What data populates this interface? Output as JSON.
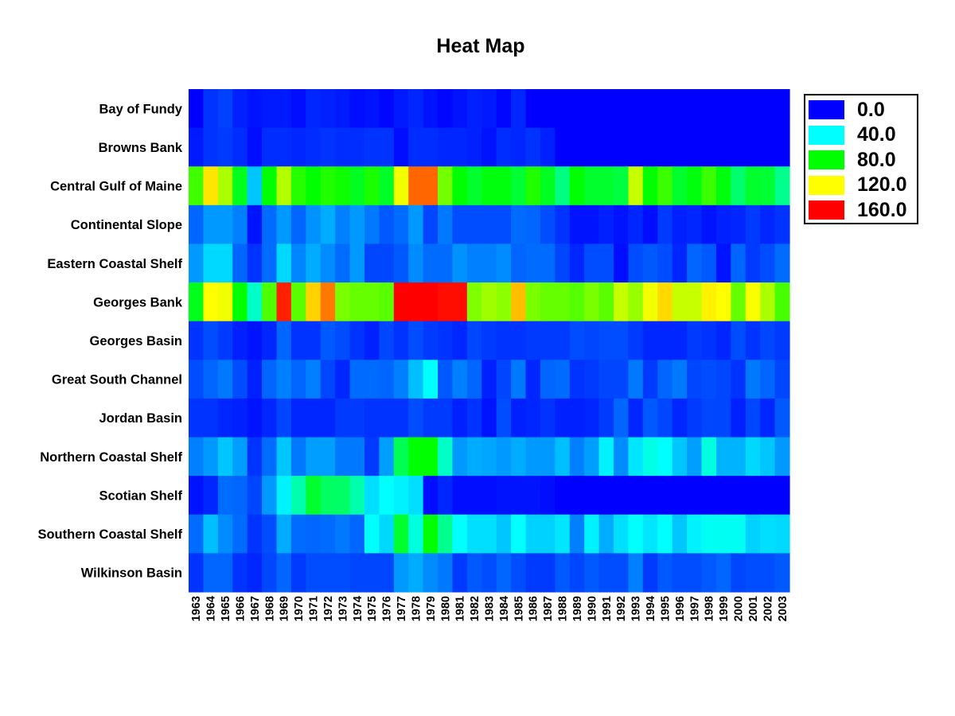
{
  "chart_data": {
    "type": "heatmap",
    "title": "Heat Map",
    "xlabel": "",
    "ylabel": "",
    "rows": [
      "Bay of Fundy",
      "Browns Bank",
      "Central Gulf of Maine",
      "Continental Slope",
      "Eastern Coastal Shelf",
      "Georges Bank",
      "Georges Basin",
      "Great South Channel",
      "Jordan Basin",
      "Northern Coastal Shelf",
      "Scotian Shelf",
      "Southern Coastal Shelf",
      "Wilkinson Basin"
    ],
    "columns": [
      "1963",
      "1964",
      "1965",
      "1966",
      "1967",
      "1968",
      "1969",
      "1970",
      "1971",
      "1972",
      "1973",
      "1974",
      "1975",
      "1976",
      "1977",
      "1978",
      "1979",
      "1980",
      "1981",
      "1982",
      "1983",
      "1984",
      "1985",
      "1986",
      "1987",
      "1988",
      "1989",
      "1990",
      "1991",
      "1992",
      "1993",
      "1994",
      "1995",
      "1996",
      "1997",
      "1998",
      "1999",
      "2000",
      "2001",
      "2002",
      "2003"
    ],
    "values": [
      [
        0,
        8,
        10,
        5,
        3,
        4,
        4,
        2,
        6,
        5,
        4,
        2,
        3,
        1,
        4,
        6,
        3,
        1,
        3,
        5,
        4,
        1,
        6,
        0,
        0,
        0,
        0,
        0,
        0,
        0,
        0,
        0,
        0,
        0,
        0,
        0,
        0,
        0,
        0,
        0,
        0
      ],
      [
        4,
        8,
        9,
        7,
        2,
        7,
        7,
        6,
        7,
        8,
        7,
        7,
        8,
        8,
        2,
        7,
        7,
        6,
        6,
        5,
        3,
        7,
        6,
        8,
        5,
        0,
        0,
        0,
        0,
        0,
        0,
        0,
        0,
        0,
        0,
        0,
        0,
        0,
        0,
        0,
        0
      ],
      [
        90,
        124,
        107,
        76,
        31,
        80,
        108,
        86,
        80,
        85,
        82,
        75,
        84,
        74,
        118,
        144,
        144,
        98,
        80,
        73,
        78,
        78,
        72,
        85,
        75,
        60,
        80,
        73,
        73,
        70,
        111,
        80,
        89,
        73,
        78,
        89,
        78,
        63,
        73,
        72,
        58
      ],
      [
        16,
        24,
        24,
        20,
        3,
        17,
        24,
        16,
        23,
        27,
        20,
        24,
        19,
        14,
        17,
        24,
        11,
        19,
        12,
        12,
        12,
        12,
        17,
        16,
        12,
        8,
        3,
        3,
        5,
        3,
        6,
        2,
        9,
        5,
        6,
        3,
        5,
        6,
        9,
        6,
        8
      ],
      [
        24,
        34,
        34,
        16,
        8,
        17,
        34,
        21,
        27,
        22,
        17,
        24,
        11,
        11,
        14,
        22,
        17,
        17,
        23,
        20,
        20,
        22,
        16,
        17,
        17,
        11,
        6,
        12,
        12,
        2,
        12,
        14,
        12,
        6,
        16,
        14,
        3,
        16,
        9,
        12,
        17
      ],
      [
        76,
        120,
        118,
        80,
        49,
        92,
        155,
        94,
        127,
        141,
        99,
        96,
        96,
        94,
        160,
        160,
        160,
        158,
        158,
        100,
        105,
        102,
        130,
        99,
        96,
        96,
        93,
        99,
        94,
        111,
        104,
        118,
        126,
        111,
        111,
        122,
        120,
        96,
        119,
        107,
        91
      ],
      [
        8,
        12,
        9,
        5,
        3,
        6,
        16,
        8,
        8,
        14,
        12,
        8,
        5,
        11,
        8,
        12,
        9,
        8,
        6,
        11,
        9,
        8,
        8,
        9,
        9,
        9,
        12,
        11,
        12,
        12,
        9,
        6,
        6,
        6,
        9,
        8,
        6,
        12,
        8,
        11,
        9
      ],
      [
        12,
        16,
        19,
        12,
        5,
        16,
        20,
        16,
        20,
        11,
        6,
        17,
        17,
        16,
        20,
        30,
        40,
        14,
        20,
        16,
        5,
        11,
        19,
        6,
        16,
        17,
        8,
        9,
        11,
        11,
        19,
        9,
        16,
        19,
        11,
        12,
        11,
        8,
        19,
        16,
        11
      ],
      [
        8,
        8,
        6,
        5,
        3,
        6,
        11,
        6,
        6,
        6,
        9,
        9,
        8,
        8,
        8,
        12,
        9,
        9,
        5,
        8,
        3,
        12,
        5,
        6,
        8,
        5,
        5,
        6,
        9,
        16,
        6,
        14,
        11,
        6,
        9,
        11,
        11,
        5,
        11,
        6,
        14
      ],
      [
        20,
        24,
        31,
        25,
        8,
        17,
        31,
        19,
        25,
        25,
        19,
        19,
        9,
        25,
        67,
        80,
        80,
        49,
        24,
        27,
        26,
        24,
        27,
        24,
        24,
        30,
        20,
        25,
        38,
        22,
        36,
        44,
        40,
        31,
        25,
        45,
        28,
        28,
        34,
        31,
        24
      ],
      [
        3,
        6,
        17,
        16,
        11,
        24,
        38,
        53,
        73,
        65,
        64,
        53,
        35,
        40,
        38,
        35,
        2,
        6,
        2,
        2,
        2,
        3,
        3,
        3,
        2,
        0,
        0,
        0,
        0,
        0,
        0,
        0,
        0,
        0,
        0,
        0,
        0,
        0,
        0,
        0,
        0
      ],
      [
        17,
        30,
        22,
        17,
        8,
        12,
        27,
        17,
        16,
        17,
        19,
        16,
        40,
        34,
        73,
        45,
        80,
        58,
        40,
        35,
        35,
        31,
        40,
        33,
        33,
        36,
        20,
        38,
        27,
        35,
        40,
        36,
        40,
        31,
        38,
        42,
        42,
        42,
        33,
        35,
        34
      ],
      [
        8,
        16,
        16,
        8,
        6,
        11,
        16,
        9,
        12,
        12,
        12,
        11,
        11,
        11,
        24,
        27,
        22,
        19,
        9,
        14,
        12,
        16,
        12,
        9,
        9,
        14,
        11,
        14,
        12,
        12,
        20,
        9,
        14,
        12,
        12,
        14,
        16,
        11,
        12,
        12,
        14
      ]
    ],
    "color_range": [
      0,
      160
    ],
    "legend": {
      "placement": "right",
      "entries": [
        {
          "label": "0.0",
          "value": 0,
          "color": "#0000ff"
        },
        {
          "label": "40.0",
          "value": 40,
          "color": "#00ffff"
        },
        {
          "label": "80.0",
          "value": 80,
          "color": "#00ff00"
        },
        {
          "label": "120.0",
          "value": 120,
          "color": "#ffff00"
        },
        {
          "label": "160.0",
          "value": 160,
          "color": "#ff0000"
        }
      ]
    },
    "grid": false
  }
}
